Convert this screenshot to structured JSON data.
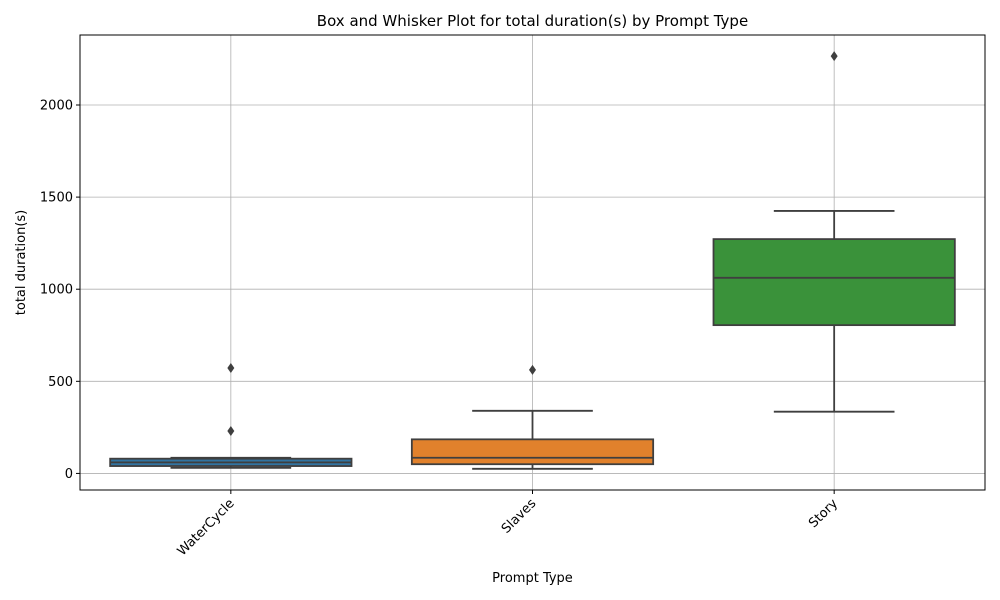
{
  "chart_data": {
    "type": "box",
    "title": "Box and Whisker Plot for total duration(s) by Prompt Type",
    "xlabel": "Prompt Type",
    "ylabel": "total duration(s)",
    "ylim": [
      -90,
      2380
    ],
    "yticks": [
      0,
      500,
      1000,
      1500,
      2000
    ],
    "grid": true,
    "categories": [
      "WaterCycle",
      "Slaves",
      "Story"
    ],
    "boxes": [
      {
        "category": "WaterCycle",
        "whisker_low": 30,
        "q1": 40,
        "median": 60,
        "q3": 80,
        "whisker_high": 85,
        "outliers": [
          230,
          572
        ],
        "color": "#3274a1"
      },
      {
        "category": "Slaves",
        "whisker_low": 25,
        "q1": 50,
        "median": 85,
        "q3": 185,
        "whisker_high": 340,
        "outliers": [
          562
        ],
        "color": "#e1812c"
      },
      {
        "category": "Story",
        "whisker_low": 335,
        "q1": 805,
        "median": 1062,
        "q3": 1272,
        "whisker_high": 1425,
        "outliers": [
          2265
        ],
        "color": "#3a923a"
      }
    ]
  }
}
